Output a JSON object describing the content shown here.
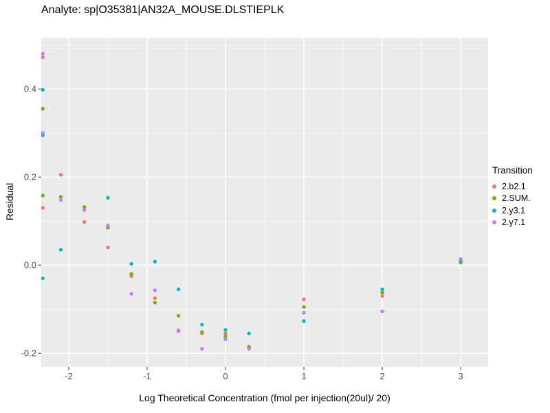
{
  "title": "Analyte: sp|O35381|AN32A_MOUSE.DLSTIEPLK",
  "legend": {
    "title": "Transition",
    "items": [
      {
        "label": "2.b2.1",
        "color": "#F8766D"
      },
      {
        "label": "2.SUM.",
        "color": "#7CAE00"
      },
      {
        "label": "2.y3.1",
        "color": "#00BFC4"
      },
      {
        "label": "2.y7.1",
        "color": "#C77CFF"
      }
    ]
  },
  "style": {
    "panel_bg": "#EBEBEB",
    "grid_major": "#FFFFFF",
    "grid_minor": "#FFFFFF",
    "tick_color": "#333333",
    "axis_text_color": "#4D4D4D"
  },
  "chart_data": {
    "type": "scatter",
    "title": "Analyte: sp|O35381|AN32A_MOUSE.DLSTIEPLK",
    "xlabel": "Log Theoretical Concentration (fmol per injection(20ul)/ 20)",
    "ylabel": "Residual",
    "xlim": [
      -2.35,
      3.35
    ],
    "ylim": [
      -0.231,
      0.516
    ],
    "x_ticks": [
      -2,
      -1,
      0,
      1,
      2,
      3
    ],
    "x_tick_labels": [
      "-2",
      "-1",
      "0",
      "1",
      "2",
      "3"
    ],
    "y_ticks": [
      -0.2,
      0.0,
      0.2,
      0.4
    ],
    "y_tick_labels": [
      "-0.2",
      "0.0",
      "0.2",
      "0.4"
    ],
    "x_minor": [
      -1.5,
      -0.5,
      0.5,
      1.5,
      2.5
    ],
    "y_minor": [
      -0.1,
      0.1,
      0.3,
      0.5
    ],
    "grid": true,
    "legend_position": "right",
    "series": [
      {
        "name": "2.b2.1",
        "color": "#F8766D",
        "points": [
          [
            -2.33,
            0.472
          ],
          [
            -2.33,
            0.355
          ],
          [
            -2.33,
            0.13
          ],
          [
            -2.1,
            0.205
          ],
          [
            -1.8,
            0.098
          ],
          [
            -1.5,
            0.04
          ],
          [
            -1.2,
            -0.025
          ],
          [
            -0.9,
            -0.075
          ],
          [
            -0.6,
            -0.148
          ],
          [
            -0.3,
            -0.155
          ],
          [
            0.0,
            -0.155
          ],
          [
            0.3,
            -0.185
          ],
          [
            1.0,
            -0.078
          ],
          [
            2.0,
            -0.07
          ],
          [
            3.0,
            0.008
          ]
        ]
      },
      {
        "name": "2.SUM.",
        "color": "#7CAE00",
        "points": [
          [
            -2.33,
            0.355
          ],
          [
            -2.33,
            0.158
          ],
          [
            -2.1,
            0.155
          ],
          [
            -1.8,
            0.132
          ],
          [
            -1.5,
            0.085
          ],
          [
            -1.2,
            -0.02
          ],
          [
            -0.9,
            -0.085
          ],
          [
            -0.6,
            -0.115
          ],
          [
            -0.3,
            -0.152
          ],
          [
            0.0,
            -0.162
          ],
          [
            0.3,
            -0.186
          ],
          [
            1.0,
            -0.095
          ],
          [
            2.0,
            -0.062
          ],
          [
            3.0,
            0.006
          ]
        ]
      },
      {
        "name": "2.y3.1",
        "color": "#00BFC4",
        "points": [
          [
            -2.33,
            0.398
          ],
          [
            -2.33,
            0.295
          ],
          [
            -2.33,
            -0.03
          ],
          [
            -2.1,
            0.035
          ],
          [
            -1.5,
            0.153
          ],
          [
            -1.2,
            0.003
          ],
          [
            -0.9,
            0.008
          ],
          [
            -0.6,
            -0.055
          ],
          [
            -0.3,
            -0.135
          ],
          [
            0.0,
            -0.147
          ],
          [
            0.3,
            -0.155
          ],
          [
            1.0,
            -0.127
          ],
          [
            2.0,
            -0.055
          ],
          [
            3.0,
            0.01
          ]
        ]
      },
      {
        "name": "2.y7.1",
        "color": "#C77CFF",
        "points": [
          [
            -2.33,
            0.48
          ],
          [
            -2.33,
            0.3
          ],
          [
            -2.1,
            0.148
          ],
          [
            -1.8,
            0.125
          ],
          [
            -1.5,
            0.09
          ],
          [
            -1.2,
            -0.065
          ],
          [
            -0.9,
            -0.057
          ],
          [
            -0.6,
            -0.15
          ],
          [
            -0.3,
            -0.19
          ],
          [
            0.0,
            -0.168
          ],
          [
            0.3,
            -0.19
          ],
          [
            1.0,
            -0.108
          ],
          [
            2.0,
            -0.105
          ],
          [
            3.0,
            0.014
          ]
        ]
      }
    ]
  }
}
